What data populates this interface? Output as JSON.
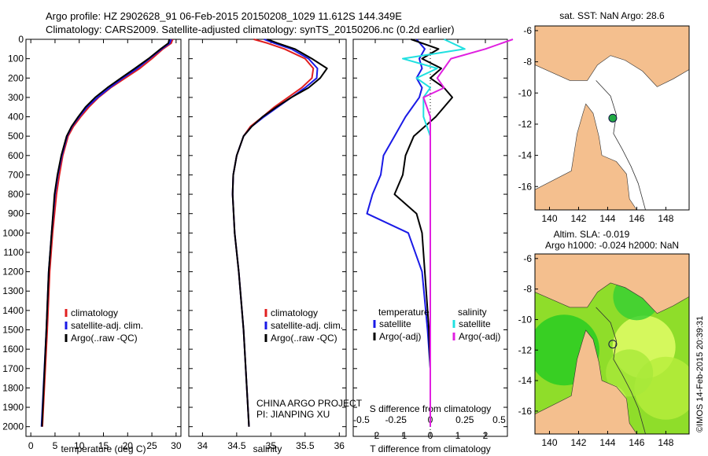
{
  "header": {
    "line1": "Argo profile: HZ 2902628_91 06-Feb-2015 20150208_1029 11.612S 144.349E",
    "line2": "Climatology: CARS2009. Satellite-adjusted climatology: synTS_20150206.nc (0.2d earlier)"
  },
  "colors": {
    "climatology": "#e02020",
    "satellite": "#1a1ae6",
    "argo": "#000000",
    "sat_cyan": "#20e0e0",
    "argo_magenta": "#e020e0",
    "land": "#f4bf8e",
    "ocean": "#ffffff"
  },
  "chart_data": [
    {
      "type": "line",
      "panel": "temperature",
      "xlabel": "temperature (deg C)",
      "xlim": [
        -1,
        31
      ],
      "xticks": [
        "0",
        "5",
        "10",
        "15",
        "20",
        "25",
        "30"
      ],
      "ylim": [
        2050,
        0
      ],
      "yticks": [
        "0",
        "100",
        "200",
        "300",
        "400",
        "500",
        "600",
        "700",
        "800",
        "900",
        "1000",
        "1100",
        "1200",
        "1300",
        "1400",
        "1500",
        "1600",
        "1700",
        "1800",
        "1900",
        "2000"
      ],
      "legend": [
        "climatology",
        "satellite-adj. clim.",
        "Argo(..raw -QC)"
      ],
      "depth": [
        0,
        20,
        50,
        100,
        150,
        200,
        250,
        300,
        350,
        400,
        450,
        500,
        600,
        700,
        800,
        1000,
        1200,
        1500,
        2000
      ],
      "series": [
        {
          "name": "climatology",
          "values": [
            29.3,
            29.0,
            27.3,
            25.0,
            22.5,
            19.5,
            16.5,
            14.0,
            12.0,
            10.3,
            8.8,
            7.7,
            6.6,
            5.9,
            5.3,
            4.5,
            3.9,
            3.4,
            2.4
          ]
        },
        {
          "name": "satellite-adj. clim.",
          "values": [
            29.0,
            28.7,
            27.0,
            24.5,
            22.0,
            19.0,
            16.3,
            13.8,
            11.6,
            10.0,
            8.5,
            7.5,
            6.4,
            5.6,
            5.0,
            4.3,
            3.7,
            3.2,
            2.2
          ]
        },
        {
          "name": "Argo(..raw -QC)",
          "values": [
            28.6,
            28.4,
            26.8,
            24.3,
            21.5,
            18.6,
            15.8,
            13.3,
            11.3,
            9.8,
            8.4,
            7.4,
            6.3,
            5.5,
            4.9,
            4.3,
            3.7,
            3.2,
            2.3
          ]
        }
      ]
    },
    {
      "type": "line",
      "panel": "salinity",
      "xlabel": "salinity",
      "xlim": [
        33.8,
        36.1
      ],
      "xticks": [
        "34",
        "34.5",
        "35",
        "35.5",
        "36"
      ],
      "legend": [
        "climatology",
        "satellite-adj. clim.",
        "Argo(..raw -QC)"
      ],
      "depth": [
        0,
        20,
        50,
        100,
        150,
        200,
        250,
        300,
        350,
        400,
        450,
        500,
        600,
        700,
        800,
        1000,
        1200,
        1500,
        2000
      ],
      "series": [
        {
          "name": "climatology",
          "values": [
            34.75,
            34.95,
            35.2,
            35.5,
            35.62,
            35.6,
            35.45,
            35.25,
            35.05,
            34.88,
            34.7,
            34.6,
            34.5,
            34.45,
            34.44,
            34.47,
            34.53,
            34.6,
            34.68
          ]
        },
        {
          "name": "satellite-adj. clim.",
          "values": [
            34.9,
            35.05,
            35.3,
            35.55,
            35.68,
            35.67,
            35.5,
            35.3,
            35.1,
            34.9,
            34.72,
            34.6,
            34.5,
            34.45,
            34.44,
            34.47,
            34.53,
            34.6,
            34.68
          ]
        },
        {
          "name": "Argo(..raw -QC)",
          "values": [
            34.95,
            35.1,
            35.35,
            35.6,
            35.82,
            35.72,
            35.55,
            35.3,
            35.08,
            34.88,
            34.72,
            34.6,
            34.5,
            34.45,
            34.44,
            34.47,
            34.53,
            34.6,
            34.68
          ]
        }
      ]
    },
    {
      "type": "line",
      "panel": "difference",
      "legend_titles": [
        "temperature",
        "salinity"
      ],
      "legend": [
        "satellite",
        "Argo(-adj)",
        "satellite",
        "Argo(-adj)"
      ],
      "xlabel_top": "S difference from climatology",
      "xticks_top": [
        "-0.5",
        "-0.25",
        "0",
        "0.25",
        "0.5"
      ],
      "xlabel": "T difference from climatology",
      "xlim": [
        -2.8,
        2.8
      ],
      "xticks": [
        "-2",
        "-1",
        "0",
        "1",
        "2"
      ],
      "depth": [
        0,
        50,
        100,
        150,
        200,
        250,
        300,
        400,
        500,
        600,
        700,
        800,
        900,
        1000,
        1200,
        1500,
        1700,
        2000
      ],
      "series": [
        {
          "name": "temperature satellite",
          "values": [
            -0.5,
            -0.2,
            -0.4,
            -0.3,
            -0.5,
            -0.3,
            -0.4,
            -0.9,
            -1.3,
            -1.7,
            -1.8,
            -2.1,
            -2.3,
            -0.8,
            -0.3,
            -0.1,
            0.0,
            0.0
          ]
        },
        {
          "name": "temperature Argo(-adj)",
          "values": [
            -0.7,
            0.3,
            -0.3,
            0.4,
            0.0,
            0.5,
            0.8,
            0.2,
            -0.6,
            -0.9,
            -1.0,
            -1.3,
            -0.5,
            -0.3,
            -0.2,
            -0.05,
            0.0,
            0.0
          ]
        },
        {
          "name": "salinity satellite",
          "values": [
            0.1,
            0.25,
            -0.2,
            0.05,
            -0.1,
            0.0,
            -0.05,
            -0.05,
            0.0,
            0.0,
            0.0,
            0.0,
            0.0,
            0.0,
            0.0,
            0.0,
            0.0,
            0.0
          ]
        },
        {
          "name": "salinity Argo(-adj)",
          "values": [
            0.6,
            0.4,
            0.15,
            0.1,
            0.05,
            0.1,
            -0.05,
            0.0,
            0.0,
            0.0,
            0.0,
            0.0,
            0.0,
            0.0,
            0.0,
            0.0,
            0.0,
            0.0
          ]
        }
      ],
      "annotation": [
        "CHINA ARGO PROJECT",
        "PI: JIANPING XU"
      ]
    },
    {
      "type": "map",
      "panel": "sst-map",
      "title": "sat. SST: NaN Argo: 28.6",
      "xlim": [
        139,
        149.6
      ],
      "ylim": [
        -17.5,
        -5.7
      ],
      "xticks": [
        "140",
        "142",
        "144",
        "146",
        "148"
      ],
      "yticks": [
        "-6",
        "-8",
        "-10",
        "-12",
        "-14",
        "-16"
      ],
      "float_position": {
        "lon": 144.349,
        "lat": -11.612
      }
    },
    {
      "type": "map",
      "panel": "sla-map",
      "title_line1": "Altim. SLA: -0.019",
      "title_line2": "Argo h1000: -0.024 h2000: NaN",
      "xlim": [
        139,
        149.6
      ],
      "ylim": [
        -17.5,
        -5.7
      ],
      "xticks": [
        "140",
        "142",
        "144",
        "146",
        "148"
      ],
      "yticks": [
        "-6",
        "-8",
        "-10",
        "-12",
        "-14",
        "-16"
      ],
      "float_position": {
        "lon": 144.349,
        "lat": -11.612
      }
    }
  ],
  "credit": "©IMOS 14-Feb-2015 20:39:31"
}
